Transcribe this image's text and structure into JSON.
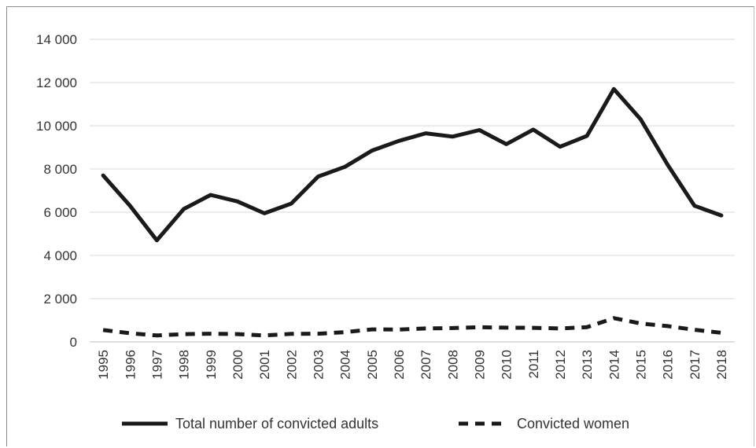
{
  "chart_data": {
    "type": "line",
    "title": "",
    "xlabel": "",
    "ylabel": "",
    "ylim": [
      0,
      14000
    ],
    "y_ticks": [
      0,
      2000,
      4000,
      6000,
      8000,
      10000,
      12000,
      14000
    ],
    "y_tick_labels": [
      "0",
      "2 000",
      "4 000",
      "6 000",
      "8 000",
      "10 000",
      "12 000",
      "14 000"
    ],
    "grid": true,
    "legend_position": "bottom",
    "x": [
      "1995",
      "1996",
      "1997",
      "1998",
      "1999",
      "2000",
      "2001",
      "2002",
      "2003",
      "2004",
      "2005",
      "2006",
      "2007",
      "2008",
      "2009",
      "2010",
      "2011",
      "2012",
      "2013",
      "2014",
      "2015",
      "2016",
      "2017",
      "2018"
    ],
    "series": [
      {
        "name": "Total number of convicted adults",
        "style": "solid",
        "color": "#1a1a1a",
        "values": [
          7700,
          6300,
          4700,
          6150,
          6800,
          6500,
          5950,
          6400,
          7650,
          8100,
          8850,
          9300,
          9650,
          9500,
          9800,
          9150,
          9820,
          9030,
          9530,
          11700,
          10300,
          8200,
          6300,
          5850
        ]
      },
      {
        "name": "Convicted women",
        "style": "dashed",
        "color": "#1a1a1a",
        "values": [
          550,
          400,
          300,
          360,
          380,
          360,
          300,
          370,
          380,
          450,
          580,
          570,
          620,
          640,
          680,
          660,
          650,
          620,
          680,
          1100,
          850,
          730,
          560,
          420
        ]
      }
    ]
  }
}
